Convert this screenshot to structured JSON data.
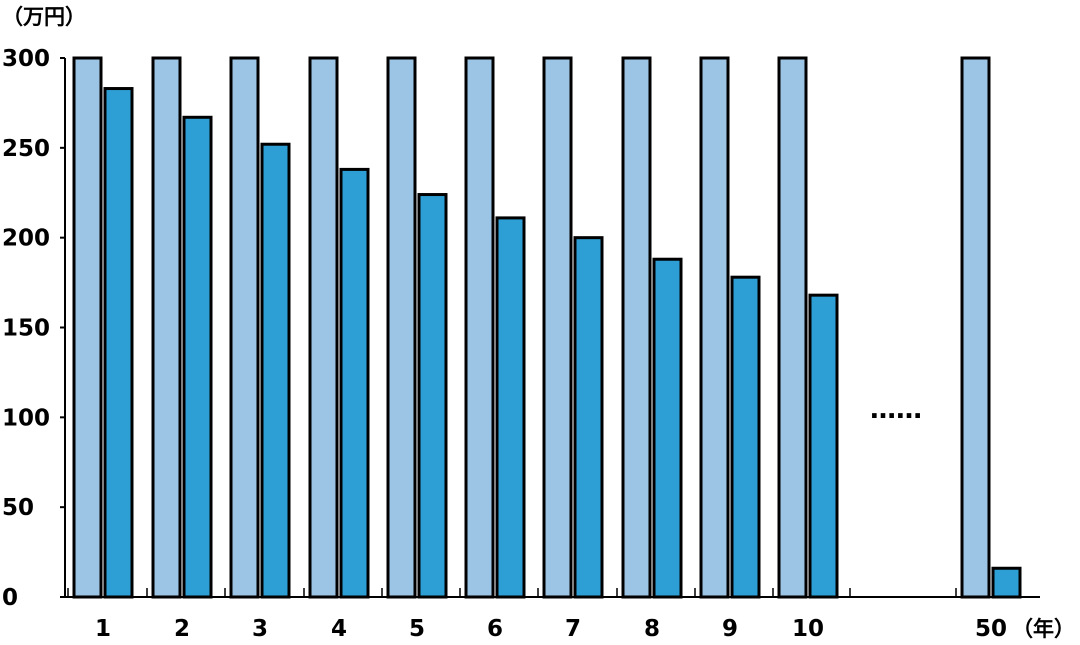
{
  "chart_data": {
    "type": "bar",
    "title": "",
    "y_unit_label": "（万円）",
    "x_unit_label": "（年）",
    "ylim": [
      0,
      300
    ],
    "yticks": [
      "0",
      "50",
      "100",
      "150",
      "200",
      "250",
      "300"
    ],
    "categories": [
      "1",
      "2",
      "3",
      "4",
      "5",
      "6",
      "7",
      "8",
      "9",
      "10",
      "50"
    ],
    "gap_marker": "……",
    "gap_after_category": "10",
    "series": [
      {
        "values": [
          300,
          300,
          300,
          300,
          300,
          300,
          300,
          300,
          300,
          300,
          300
        ],
        "color": "#9CC4E4"
      },
      {
        "values": [
          283,
          267,
          252,
          238,
          224,
          211,
          200,
          188,
          178,
          168,
          16
        ],
        "color": "#2E9FD4"
      }
    ],
    "grid": false
  }
}
